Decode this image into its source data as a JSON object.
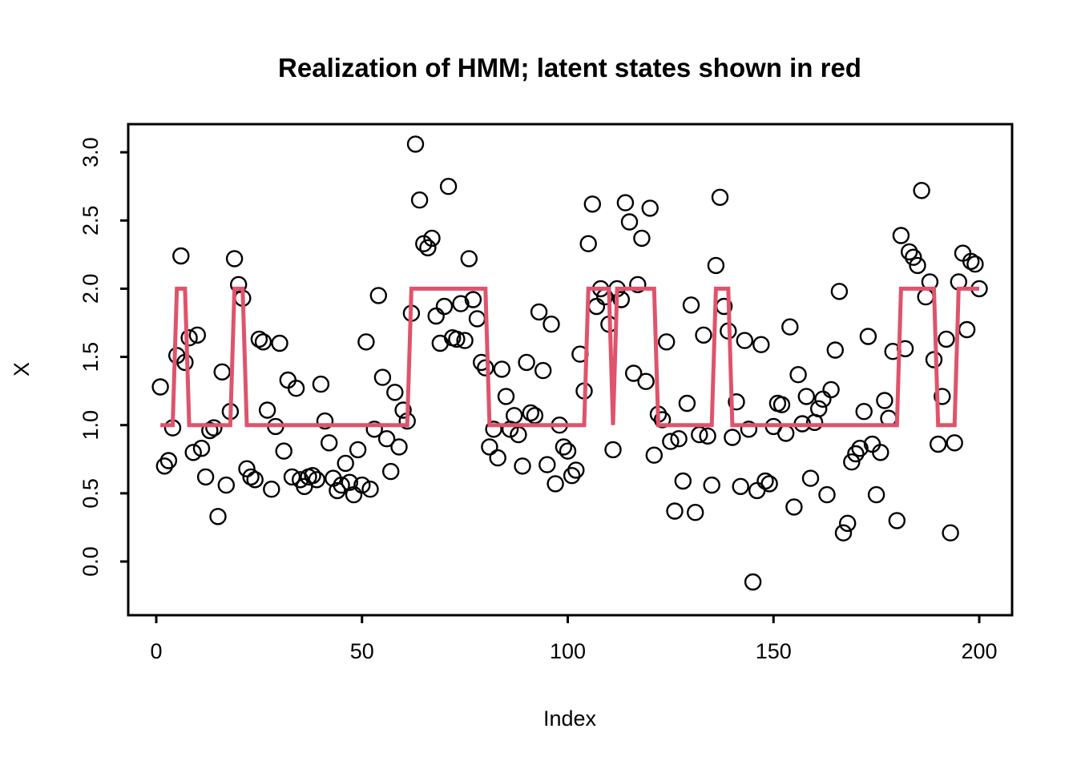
{
  "title": "Realization of HMM; latent states shown in red",
  "colors": {
    "background": "#ffffff",
    "foreground": "#000000",
    "latent_line_red": "#DF536B"
  },
  "chart_data": {
    "type": "scatter",
    "title": "Realization of HMM; latent states shown in red",
    "xlabel": "Index",
    "ylabel": "X",
    "x_ticks": [
      0,
      50,
      100,
      150,
      200
    ],
    "y_ticks": [
      "3.0",
      "2.5",
      "2.0",
      "1.5",
      "1.0",
      "0.5",
      "0.0"
    ],
    "xlim": [
      -7,
      208
    ],
    "ylim": [
      -0.29,
      3.21
    ],
    "grid": false,
    "legend": "none",
    "n_points": 200,
    "marker": "open-circle",
    "series": [
      {
        "name": "observations",
        "style": "scatter-open-circles",
        "points": [
          [
            1,
            1.28
          ],
          [
            2,
            0.7
          ],
          [
            3,
            0.74
          ],
          [
            4,
            0.98
          ],
          [
            5,
            1.51
          ],
          [
            6,
            2.24
          ],
          [
            7,
            1.46
          ],
          [
            8,
            1.64
          ],
          [
            9,
            0.8
          ],
          [
            10,
            1.66
          ],
          [
            11,
            0.83
          ],
          [
            12,
            0.62
          ],
          [
            13,
            0.96
          ],
          [
            14,
            0.98
          ],
          [
            15,
            0.33
          ],
          [
            16,
            1.39
          ],
          [
            17,
            0.56
          ],
          [
            18,
            1.1
          ],
          [
            19,
            2.22
          ],
          [
            20,
            2.03
          ],
          [
            21,
            1.93
          ],
          [
            22,
            0.68
          ],
          [
            23,
            0.62
          ],
          [
            24,
            0.6
          ],
          [
            25,
            1.63
          ],
          [
            26,
            1.61
          ],
          [
            27,
            1.11
          ],
          [
            28,
            0.53
          ],
          [
            29,
            0.99
          ],
          [
            30,
            1.6
          ],
          [
            31,
            0.81
          ],
          [
            32,
            1.33
          ],
          [
            33,
            0.62
          ],
          [
            34,
            1.27
          ],
          [
            35,
            0.6
          ],
          [
            36,
            0.55
          ],
          [
            37,
            0.62
          ],
          [
            38,
            0.63
          ],
          [
            39,
            0.6
          ],
          [
            40,
            1.3
          ],
          [
            41,
            1.03
          ],
          [
            42,
            0.87
          ],
          [
            43,
            0.61
          ],
          [
            44,
            0.52
          ],
          [
            45,
            0.56
          ],
          [
            46,
            0.72
          ],
          [
            47,
            0.58
          ],
          [
            48,
            0.49
          ],
          [
            49,
            0.82
          ],
          [
            50,
            0.56
          ],
          [
            51,
            1.61
          ],
          [
            52,
            0.53
          ],
          [
            53,
            0.97
          ],
          [
            54,
            1.95
          ],
          [
            55,
            1.35
          ],
          [
            56,
            0.9
          ],
          [
            57,
            0.66
          ],
          [
            58,
            1.24
          ],
          [
            59,
            0.84
          ],
          [
            60,
            1.11
          ],
          [
            61,
            1.03
          ],
          [
            62,
            1.82
          ],
          [
            63,
            3.06
          ],
          [
            64,
            2.65
          ],
          [
            65,
            2.33
          ],
          [
            66,
            2.3
          ],
          [
            67,
            2.37
          ],
          [
            68,
            1.8
          ],
          [
            69,
            1.6
          ],
          [
            70,
            1.87
          ],
          [
            71,
            2.75
          ],
          [
            72,
            1.64
          ],
          [
            73,
            1.63
          ],
          [
            74,
            1.89
          ],
          [
            75,
            1.62
          ],
          [
            76,
            2.22
          ],
          [
            77,
            1.92
          ],
          [
            78,
            1.78
          ],
          [
            79,
            1.46
          ],
          [
            80,
            1.42
          ],
          [
            81,
            0.84
          ],
          [
            82,
            0.97
          ],
          [
            83,
            0.76
          ],
          [
            84,
            1.41
          ],
          [
            85,
            1.21
          ],
          [
            86,
            0.97
          ],
          [
            87,
            1.07
          ],
          [
            88,
            0.93
          ],
          [
            89,
            0.7
          ],
          [
            90,
            1.46
          ],
          [
            91,
            1.09
          ],
          [
            92,
            1.07
          ],
          [
            93,
            1.83
          ],
          [
            94,
            1.4
          ],
          [
            95,
            0.71
          ],
          [
            96,
            1.74
          ],
          [
            97,
            0.57
          ],
          [
            98,
            1.0
          ],
          [
            99,
            0.84
          ],
          [
            100,
            0.81
          ],
          [
            101,
            0.63
          ],
          [
            102,
            0.67
          ],
          [
            103,
            1.52
          ],
          [
            104,
            1.25
          ],
          [
            105,
            2.33
          ],
          [
            106,
            2.62
          ],
          [
            107,
            1.87
          ],
          [
            108,
            2.0
          ],
          [
            109,
            1.94
          ],
          [
            110,
            1.74
          ],
          [
            111,
            0.82
          ],
          [
            112,
            2.0
          ],
          [
            113,
            1.92
          ],
          [
            114,
            2.63
          ],
          [
            115,
            2.49
          ],
          [
            116,
            1.38
          ],
          [
            117,
            2.03
          ],
          [
            118,
            2.37
          ],
          [
            119,
            1.32
          ],
          [
            120,
            2.59
          ],
          [
            121,
            0.78
          ],
          [
            122,
            1.08
          ],
          [
            123,
            1.04
          ],
          [
            124,
            1.61
          ],
          [
            125,
            0.88
          ],
          [
            126,
            0.37
          ],
          [
            127,
            0.9
          ],
          [
            128,
            0.59
          ],
          [
            129,
            1.16
          ],
          [
            130,
            1.88
          ],
          [
            131,
            0.36
          ],
          [
            132,
            0.93
          ],
          [
            133,
            1.66
          ],
          [
            134,
            0.92
          ],
          [
            135,
            0.56
          ],
          [
            136,
            2.17
          ],
          [
            137,
            2.67
          ],
          [
            138,
            1.87
          ],
          [
            139,
            1.69
          ],
          [
            140,
            0.91
          ],
          [
            141,
            1.17
          ],
          [
            142,
            0.55
          ],
          [
            143,
            1.62
          ],
          [
            144,
            0.97
          ],
          [
            145,
            -0.15
          ],
          [
            146,
            0.52
          ],
          [
            147,
            1.59
          ],
          [
            148,
            0.59
          ],
          [
            149,
            0.57
          ],
          [
            150,
            0.99
          ],
          [
            151,
            1.16
          ],
          [
            152,
            1.15
          ],
          [
            153,
            0.94
          ],
          [
            154,
            1.72
          ],
          [
            155,
            0.4
          ],
          [
            156,
            1.37
          ],
          [
            157,
            1.01
          ],
          [
            158,
            1.21
          ],
          [
            159,
            0.61
          ],
          [
            160,
            1.02
          ],
          [
            161,
            1.12
          ],
          [
            162,
            1.19
          ],
          [
            163,
            0.49
          ],
          [
            164,
            1.26
          ],
          [
            165,
            1.55
          ],
          [
            166,
            1.98
          ],
          [
            167,
            0.21
          ],
          [
            168,
            0.28
          ],
          [
            169,
            0.73
          ],
          [
            170,
            0.79
          ],
          [
            171,
            0.83
          ],
          [
            172,
            1.1
          ],
          [
            173,
            1.65
          ],
          [
            174,
            0.86
          ],
          [
            175,
            0.49
          ],
          [
            176,
            0.8
          ],
          [
            177,
            1.18
          ],
          [
            178,
            1.05
          ],
          [
            179,
            1.54
          ],
          [
            180,
            0.3
          ],
          [
            181,
            2.39
          ],
          [
            182,
            1.56
          ],
          [
            183,
            2.27
          ],
          [
            184,
            2.23
          ],
          [
            185,
            2.17
          ],
          [
            186,
            2.72
          ],
          [
            187,
            1.94
          ],
          [
            188,
            2.05
          ],
          [
            189,
            1.48
          ],
          [
            190,
            0.86
          ],
          [
            191,
            1.21
          ],
          [
            192,
            1.63
          ],
          [
            193,
            0.21
          ],
          [
            194,
            0.87
          ],
          [
            195,
            2.05
          ],
          [
            196,
            2.26
          ],
          [
            197,
            1.7
          ],
          [
            198,
            2.2
          ],
          [
            199,
            2.18
          ],
          [
            200,
            2.0
          ]
        ]
      },
      {
        "name": "latent-states",
        "style": "step-line",
        "color": "#DF536B",
        "state1_level": 1,
        "state2_level": 2,
        "state2_segments": [
          [
            5,
            7
          ],
          [
            19,
            21
          ],
          [
            62,
            80
          ],
          [
            105,
            110
          ],
          [
            112,
            121
          ],
          [
            136,
            139
          ],
          [
            181,
            189
          ],
          [
            195,
            200
          ]
        ]
      }
    ]
  }
}
